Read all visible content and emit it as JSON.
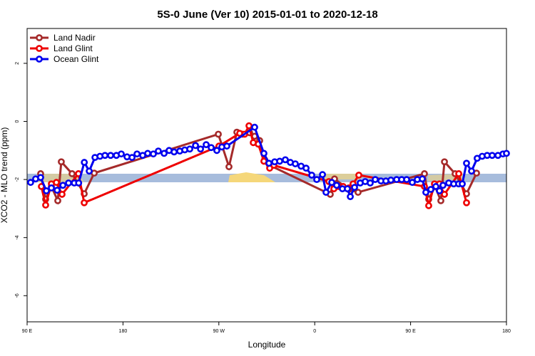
{
  "chart_data": {
    "type": "line",
    "title": "5S-0 June (Ver 10)   2015-01-01 to 2020-12-18",
    "x_label": "Longitude",
    "y_label": "XCO2 - MLO trend (ppm)",
    "xlim": [
      90,
      540
    ],
    "ylim": [
      -6.9,
      3.2
    ],
    "xticks": [
      {
        "value": 90,
        "label": "90 E"
      },
      180,
      {
        "value": 270,
        "label": "90 W"
      },
      {
        "value": 360,
        "label": "0"
      },
      {
        "value": 450,
        "label": "90 E"
      },
      {
        "value": 540,
        "label": "180"
      }
    ],
    "yticks": [
      -6,
      -4,
      -2,
      0,
      2
    ],
    "legend": "top-left",
    "series": [
      {
        "name": "Land Nadir",
        "color": "#a52a2a",
        "x": [
          102.7,
          107.4,
          112.8,
          118.8,
          122.1,
          132.2,
          143.6,
          153,
          269.5,
          279.5,
          286.9,
          292.2,
          298.9,
          303.6,
          308.3,
          313,
          317.7,
          374.6,
          378.6,
          392,
          400.7,
          463,
          467,
          473,
          478.4,
          481.8,
          491.8,
          502.5,
          511.9
        ],
        "values": [
          -1.8,
          -2.68,
          -2.24,
          -2.73,
          -1.39,
          -1.8,
          -2.49,
          -1.78,
          -0.44,
          -1.56,
          -0.37,
          -0.44,
          -0.39,
          -0.51,
          -0.66,
          -1.32,
          -1.51,
          -2.51,
          -1.98,
          -2.34,
          -2.44,
          -1.8,
          -2.68,
          -2.24,
          -2.73,
          -1.39,
          -1.8,
          -2.49,
          -1.78
        ]
      },
      {
        "name": "Land Glint",
        "color": "#ee0000",
        "x": [
          103.4,
          107.4,
          112.8,
          117.5,
          122.8,
          138.2,
          143.6,
          270.1,
          289.6,
          294.2,
          298.3,
          302.3,
          307,
          312.3,
          317.7,
          321.7,
          373.3,
          378,
          382.6,
          386.7,
          392,
          396,
          401.4,
          463,
          467,
          472.4,
          477.1,
          481.8,
          495.2,
          502.5
        ],
        "values": [
          -2.24,
          -2.88,
          -2.15,
          -2.1,
          -2.51,
          -1.8,
          -2.8,
          -0.85,
          -0.41,
          -0.44,
          -0.15,
          -0.73,
          -0.78,
          -1.37,
          -1.61,
          -1.51,
          -2.07,
          -2.32,
          -2.24,
          -2.24,
          -2.29,
          -2.15,
          -1.85,
          -2.24,
          -2.9,
          -2.15,
          -2.15,
          -2.51,
          -1.8,
          -2.8
        ]
      },
      {
        "name": "Ocean Glint",
        "color": "#0000ee",
        "x": [
          93.3,
          98,
          102.7,
          108.1,
          112.8,
          118.2,
          123.6,
          128.9,
          134.3,
          138.4,
          143.7,
          148.3,
          153.7,
          158.4,
          163.1,
          168.4,
          173.8,
          178.4,
          183.8,
          188.5,
          193.2,
          198.5,
          203.2,
          208.5,
          213.2,
          218.6,
          223.3,
          228,
          233.3,
          238,
          242.7,
          248.1,
          252.8,
          258.1,
          262.8,
          268.1,
          272.8,
          277.5,
          303.6,
          312.3,
          317,
          322.4,
          327.1,
          332.4,
          337.1,
          341.8,
          347.2,
          351.9,
          357.2,
          361.9,
          367.3,
          370.6,
          376,
          380.6,
          386,
          390.7,
          393.4,
          397.4,
          402.7,
          407.4,
          412.1,
          416.8,
          422.2,
          426.8,
          431.5,
          436.9,
          441.6,
          446.3,
          451.6,
          456.3,
          461,
          464.3,
          469,
          473.7,
          477.1,
          480.4,
          485.8,
          490.5,
          495.1,
          498.5,
          502.5,
          507.2,
          512.5,
          517.2,
          521.9,
          526.6,
          532,
          536.7,
          540
        ],
        "values": [
          -2.1,
          -1.98,
          -1.93,
          -2.39,
          -2.29,
          -2.37,
          -2.2,
          -2.12,
          -2.12,
          -2.12,
          -1.41,
          -1.71,
          -1.24,
          -1.2,
          -1.17,
          -1.17,
          -1.17,
          -1.12,
          -1.22,
          -1.24,
          -1.12,
          -1.17,
          -1.1,
          -1.12,
          -1.02,
          -1.1,
          -1,
          -1.05,
          -1.02,
          -0.98,
          -0.95,
          -0.83,
          -0.95,
          -0.8,
          -0.9,
          -1,
          -0.88,
          -0.85,
          -0.2,
          -1.1,
          -1.44,
          -1.39,
          -1.37,
          -1.32,
          -1.41,
          -1.46,
          -1.54,
          -1.61,
          -1.85,
          -2,
          -1.83,
          -2.44,
          -2.1,
          -2.2,
          -2.32,
          -2.32,
          -2.59,
          -2.27,
          -2.12,
          -2.07,
          -2.12,
          -2,
          -2.05,
          -2.05,
          -2.02,
          -2,
          -2,
          -2,
          -2.1,
          -2,
          -1.98,
          -2.44,
          -2.34,
          -2.24,
          -2.39,
          -2.2,
          -2.12,
          -2.15,
          -2.15,
          -2.15,
          -1.44,
          -1.71,
          -1.27,
          -1.2,
          -1.17,
          -1.17,
          -1.17,
          -1.12,
          -1.1
        ]
      }
    ]
  }
}
